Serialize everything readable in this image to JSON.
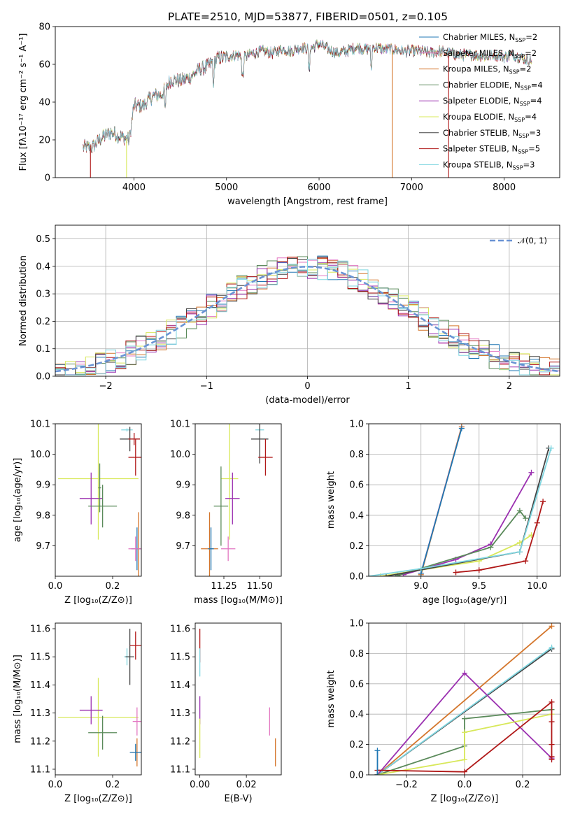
{
  "figure_title": "PLATE=2510, MJD=53877, FIBERID=0501, z=0.105",
  "colors": {
    "chabrier_miles": "#1f77b4",
    "salpeter_miles": "#e377c2",
    "kroupa_miles": "#d4762c",
    "chabrier_elodie": "#5a8a5a",
    "salpeter_elodie": "#9b30b0",
    "kroupa_elodie": "#d8e85a",
    "chabrier_stelib": "#444444",
    "salpeter_stelib": "#b01818",
    "kroupa_stelib": "#7fd6e0",
    "normal_curve": "#6a93d4"
  },
  "chart_data": [
    {
      "id": "spectrum",
      "type": "line",
      "title": "PLATE=2510, MJD=53877, FIBERID=0501, z=0.105",
      "xlabel": "wavelength [Angstrom, rest frame]",
      "ylabel": "Flux [fλ10⁻¹⁷ erg cm⁻² s⁻¹ A⁻¹]",
      "xlim": [
        3150,
        8600
      ],
      "ylim": [
        0,
        80
      ],
      "xticks": [
        4000,
        5000,
        6000,
        7000,
        8000
      ],
      "yticks": [
        0,
        20,
        40,
        60,
        80
      ],
      "legend_position": "upper-right",
      "envelope": {
        "x": [
          3450,
          3550,
          3650,
          3750,
          3850,
          3950,
          4000,
          4100,
          4200,
          4300,
          4400,
          4500,
          4600,
          4700,
          4800,
          4900,
          5000,
          5100,
          5200,
          5300,
          5400,
          5500,
          5600,
          5700,
          5800,
          5900,
          6000,
          6100,
          6200,
          6300,
          6400,
          6500,
          6600,
          6700,
          6800,
          6900,
          7000,
          7100,
          7200,
          7300,
          7400,
          7500,
          7600,
          7700,
          7800,
          7900,
          8000,
          8100,
          8200,
          8300
        ],
        "y": [
          16,
          16,
          21,
          24,
          22,
          20,
          38,
          38,
          43,
          44,
          52,
          51,
          53,
          57,
          59,
          63,
          64,
          65,
          64,
          66,
          67,
          66,
          68,
          67,
          69,
          68,
          71,
          68,
          66,
          67,
          69,
          68,
          69,
          68,
          68,
          67,
          67,
          67,
          66,
          67,
          66,
          65,
          65,
          65,
          64,
          65,
          64,
          65,
          63,
          62
        ]
      },
      "series": [
        {
          "name": "Chabrier MILES, N_SSP=2",
          "color_key": "chabrier_miles"
        },
        {
          "name": "Salpeter MILES, N_SSP=2",
          "color_key": "salpeter_miles"
        },
        {
          "name": "Kroupa MILES, N_SSP=2",
          "color_key": "kroupa_miles"
        },
        {
          "name": "Chabrier ELODIE, N_SSP=4",
          "color_key": "chabrier_elodie"
        },
        {
          "name": "Salpeter ELODIE, N_SSP=4",
          "color_key": "salpeter_elodie"
        },
        {
          "name": "Kroupa ELODIE, N_SSP=4",
          "color_key": "kroupa_elodie"
        },
        {
          "name": "Chabrier STELIB, N_SSP=3",
          "color_key": "chabrier_stelib"
        },
        {
          "name": "Salpeter STELIB, N_SSP=5",
          "color_key": "salpeter_stelib"
        },
        {
          "name": "Kroupa STELIB, N_SSP=3",
          "color_key": "kroupa_stelib"
        }
      ],
      "spikes_to_zero": [
        {
          "x": 3530,
          "color_key": "salpeter_stelib"
        },
        {
          "x": 3920,
          "color_key": "kroupa_elodie"
        },
        {
          "x": 6790,
          "color_key": "kroupa_miles"
        },
        {
          "x": 7400,
          "color_key": "salpeter_stelib"
        }
      ]
    },
    {
      "id": "residuals",
      "type": "histogram",
      "xlabel": "(data-model)/error",
      "ylabel": "Normed distribution",
      "xlim": [
        -2.5,
        2.5
      ],
      "ylim": [
        0,
        0.55
      ],
      "xticks": [
        -2,
        -1,
        0,
        1,
        2
      ],
      "yticks": [
        0.0,
        0.1,
        0.2,
        0.3,
        0.4,
        0.5
      ],
      "grid": true,
      "legend": "𝒩(0, 1)",
      "legend_position": "upper-right",
      "bin_width": 0.1
    },
    {
      "id": "age_vs_Z",
      "type": "errorbar",
      "xlabel": "Z [log₁₀(Z/Z⊙)]",
      "ylabel": "age  [log₁₀(age/yr)]",
      "xlim": [
        0.0,
        0.3
      ],
      "ylim": [
        9.6,
        10.1
      ],
      "xticks": [
        0.0,
        0.2
      ],
      "yticks": [
        9.7,
        9.8,
        9.9,
        10.0,
        10.1
      ],
      "points": [
        {
          "color_key": "kroupa_elodie",
          "x": 0.15,
          "y": 9.92,
          "xerr": 0.14,
          "yerr": 0.2
        },
        {
          "color_key": "salpeter_elodie",
          "x": 0.125,
          "y": 9.855,
          "xerr": 0.04,
          "yerr": 0.085
        },
        {
          "color_key": "chabrier_elodie",
          "x": 0.165,
          "y": 9.83,
          "xerr": 0.05,
          "yerr": 0.07
        },
        {
          "color_key": "chabrier_elodie",
          "x": 0.155,
          "y": 9.89,
          "xerr": 0.005,
          "yerr": 0.08
        },
        {
          "color_key": "kroupa_stelib",
          "x": 0.25,
          "y": 10.08,
          "xerr": 0.02,
          "yerr": 0.005
        },
        {
          "color_key": "chabrier_stelib",
          "x": 0.26,
          "y": 10.05,
          "xerr": 0.035,
          "yerr": 0.04
        },
        {
          "color_key": "salpeter_stelib",
          "x": 0.28,
          "y": 9.99,
          "xerr": 0.025,
          "yerr": 0.06
        },
        {
          "color_key": "salpeter_stelib",
          "x": 0.275,
          "y": 10.05,
          "xerr": 0.02,
          "yerr": 0.02
        },
        {
          "color_key": "kroupa_miles",
          "x": 0.29,
          "y": 9.69,
          "xerr": 0.025,
          "yerr": 0.12
        },
        {
          "color_key": "chabrier_miles",
          "x": 0.285,
          "y": 9.69,
          "xerr": 0.02,
          "yerr": 0.07
        },
        {
          "color_key": "salpeter_miles",
          "x": 0.28,
          "y": 9.69,
          "xerr": 0.025,
          "yerr": 0.04
        }
      ]
    },
    {
      "id": "age_vs_mass",
      "type": "errorbar",
      "xlabel": "mass [log₁₀(M/M⊙)]",
      "ylabel": "",
      "xlim": [
        11.05,
        11.65
      ],
      "ylim": [
        9.6,
        10.1
      ],
      "xticks": [
        11.25,
        11.5
      ],
      "yticks": [
        9.7,
        9.8,
        9.9,
        10.0,
        10.1
      ],
      "points": [
        {
          "color_key": "kroupa_elodie",
          "x": 11.29,
          "y": 9.92,
          "xerr": 0.06,
          "yerr": 0.2
        },
        {
          "color_key": "salpeter_elodie",
          "x": 11.31,
          "y": 9.855,
          "xerr": 0.05,
          "yerr": 0.085
        },
        {
          "color_key": "chabrier_elodie",
          "x": 11.23,
          "y": 9.83,
          "xerr": 0.05,
          "yerr": 0.13
        },
        {
          "color_key": "kroupa_stelib",
          "x": 11.5,
          "y": 10.08,
          "xerr": 0.03,
          "yerr": 0.005
        },
        {
          "color_key": "chabrier_stelib",
          "x": 11.5,
          "y": 10.05,
          "xerr": 0.06,
          "yerr": 0.08
        },
        {
          "color_key": "salpeter_stelib",
          "x": 11.54,
          "y": 9.99,
          "xerr": 0.05,
          "yerr": 0.06
        },
        {
          "color_key": "kroupa_miles",
          "x": 11.15,
          "y": 9.69,
          "xerr": 0.06,
          "yerr": 0.12
        },
        {
          "color_key": "chabrier_miles",
          "x": 11.16,
          "y": 9.69,
          "xerr": 0.02,
          "yerr": 0.07
        },
        {
          "color_key": "salpeter_miles",
          "x": 11.28,
          "y": 9.69,
          "xerr": 0.05,
          "yerr": 0.04
        }
      ]
    },
    {
      "id": "weight_vs_age",
      "type": "line",
      "xlabel": "age  [log₁₀(age/yr)]",
      "ylabel": "mass weight",
      "xlim": [
        8.55,
        10.2
      ],
      "ylim": [
        0.0,
        1.0
      ],
      "xticks": [
        9.0,
        9.5,
        10.0
      ],
      "yticks": [
        0.0,
        0.2,
        0.4,
        0.6,
        0.8,
        1.0
      ],
      "grid": true,
      "series": [
        {
          "color_key": "salpeter_miles",
          "x": [
            9.0,
            9.35
          ],
          "y": [
            0.02,
            0.98
          ]
        },
        {
          "color_key": "kroupa_miles",
          "x": [
            9.0,
            9.35
          ],
          "y": [
            0.01,
            0.98
          ]
        },
        {
          "color_key": "chabrier_miles",
          "x": [
            9.0,
            9.35
          ],
          "y": [
            0.02,
            0.97
          ]
        },
        {
          "color_key": "salpeter_elodie",
          "x": [
            8.85,
            9.3,
            9.6,
            9.95
          ],
          "y": [
            0.01,
            0.11,
            0.21,
            0.68
          ]
        },
        {
          "color_key": "chabrier_elodie",
          "x": [
            8.8,
            9.6,
            9.85,
            9.9
          ],
          "y": [
            0.005,
            0.19,
            0.43,
            0.38
          ]
        },
        {
          "color_key": "kroupa_elodie",
          "x": [
            8.65,
            9.5,
            9.85,
            9.95
          ],
          "y": [
            0.0,
            0.1,
            0.22,
            0.27
          ]
        },
        {
          "color_key": "chabrier_stelib",
          "x": [
            8.7,
            9.85,
            10.1
          ],
          "y": [
            0.0,
            0.16,
            0.84
          ]
        },
        {
          "color_key": "salpeter_stelib",
          "x": [
            9.3,
            9.5,
            9.9,
            10.0,
            10.05
          ],
          "y": [
            0.025,
            0.04,
            0.1,
            0.35,
            0.49
          ]
        },
        {
          "color_key": "kroupa_stelib",
          "x": [
            8.55,
            9.0,
            9.85,
            10.12
          ],
          "y": [
            0.0,
            0.05,
            0.16,
            0.84
          ]
        }
      ]
    },
    {
      "id": "mass_vs_Z",
      "type": "errorbar",
      "xlabel": "Z [log₁₀(Z/Z⊙)]",
      "ylabel": "mass [log₁₀(M/M⊙)]",
      "xlim": [
        0.0,
        0.3
      ],
      "ylim": [
        11.08,
        11.62
      ],
      "xticks": [
        0.0,
        0.2
      ],
      "yticks": [
        11.1,
        11.2,
        11.3,
        11.4,
        11.5,
        11.6
      ],
      "points": [
        {
          "color_key": "kroupa_elodie",
          "x": 0.15,
          "y": 11.285,
          "xerr": 0.14,
          "yerr": 0.14
        },
        {
          "color_key": "salpeter_elodie",
          "x": 0.125,
          "y": 11.31,
          "xerr": 0.04,
          "yerr": 0.05
        },
        {
          "color_key": "chabrier_elodie",
          "x": 0.165,
          "y": 11.23,
          "xerr": 0.05,
          "yerr": 0.06
        },
        {
          "color_key": "kroupa_stelib",
          "x": 0.25,
          "y": 11.5,
          "xerr": 0.01,
          "yerr": 0.03
        },
        {
          "color_key": "chabrier_stelib",
          "x": 0.26,
          "y": 11.5,
          "xerr": 0.015,
          "yerr": 0.1
        },
        {
          "color_key": "salpeter_stelib",
          "x": 0.28,
          "y": 11.54,
          "xerr": 0.02,
          "yerr": 0.05
        },
        {
          "color_key": "kroupa_miles",
          "x": 0.285,
          "y": 11.16,
          "xerr": 0.02,
          "yerr": 0.05
        },
        {
          "color_key": "chabrier_miles",
          "x": 0.28,
          "y": 11.16,
          "xerr": 0.02,
          "yerr": 0.03
        },
        {
          "color_key": "salpeter_miles",
          "x": 0.285,
          "y": 11.27,
          "xerr": 0.015,
          "yerr": 0.05
        }
      ]
    },
    {
      "id": "mass_vs_EBV",
      "type": "errorbar",
      "xlabel": "E(B-V)",
      "ylabel": "",
      "xlim": [
        -0.002,
        0.035
      ],
      "ylim": [
        11.08,
        11.62
      ],
      "xticks": [
        0.0,
        0.02
      ],
      "yticks": [
        11.1,
        11.2,
        11.3,
        11.4,
        11.5,
        11.6
      ],
      "points": [
        {
          "color_key": "salpeter_stelib",
          "x": 0.0,
          "y": 11.54,
          "xerr": 0.0,
          "yerr": 0.06
        },
        {
          "color_key": "kroupa_stelib",
          "x": 0.0,
          "y": 11.48,
          "xerr": 0.0,
          "yerr": 0.05
        },
        {
          "color_key": "salpeter_elodie",
          "x": 0.0,
          "y": 11.31,
          "xerr": 0.0,
          "yerr": 0.05
        },
        {
          "color_key": "kroupa_elodie",
          "x": 0.0,
          "y": 11.21,
          "xerr": 0.0,
          "yerr": 0.07
        },
        {
          "color_key": "salpeter_miles",
          "x": 0.03,
          "y": 11.27,
          "xerr": 0.0,
          "yerr": 0.05
        },
        {
          "color_key": "kroupa_miles",
          "x": 0.0325,
          "y": 11.16,
          "xerr": 0.0,
          "yerr": 0.05
        }
      ]
    },
    {
      "id": "weight_vs_Z",
      "type": "line",
      "xlabel": "Z [log₁₀(Z/Z⊙)]",
      "ylabel": "mass weight",
      "xlim": [
        -0.33,
        0.33
      ],
      "ylim": [
        0.0,
        1.0
      ],
      "xticks": [
        -0.2,
        0.0,
        0.2
      ],
      "yticks": [
        0.0,
        0.2,
        0.4,
        0.6,
        0.8,
        1.0
      ],
      "grid": true,
      "series": [
        {
          "color_key": "kroupa_miles",
          "x": [
            -0.3,
            0.3
          ],
          "y": [
            0.0,
            0.98
          ]
        },
        {
          "color_key": "chabrier_stelib",
          "x": [
            -0.3,
            0.3
          ],
          "y": [
            0.0,
            0.83
          ]
        },
        {
          "color_key": "kroupa_stelib",
          "x": [
            -0.3,
            0.3
          ],
          "y": [
            0.0,
            0.84
          ]
        },
        {
          "color_key": "salpeter_elodie",
          "x": [
            -0.3,
            0.0,
            0.3
          ],
          "y": [
            0.0,
            0.67,
            0.11
          ]
        },
        {
          "color_key": "chabrier_elodie",
          "x": [
            -0.3,
            0.0,
            0.0,
            0.3
          ],
          "y": [
            0.0,
            0.19,
            0.37,
            0.43
          ]
        },
        {
          "color_key": "kroupa_elodie",
          "x": [
            -0.3,
            0.0,
            0.0,
            0.3
          ],
          "y": [
            0.0,
            0.1,
            0.28,
            0.4
          ]
        },
        {
          "color_key": "salpeter_stelib",
          "x": [
            -0.3,
            0.0,
            0.3,
            0.3,
            0.3,
            0.3,
            0.3
          ],
          "y": [
            0.03,
            0.02,
            0.48,
            0.35,
            0.2,
            0.12,
            0.1
          ]
        },
        {
          "color_key": "chabrier_miles",
          "x": [
            -0.3,
            -0.3
          ],
          "y": [
            0.0,
            0.16
          ]
        }
      ]
    }
  ]
}
